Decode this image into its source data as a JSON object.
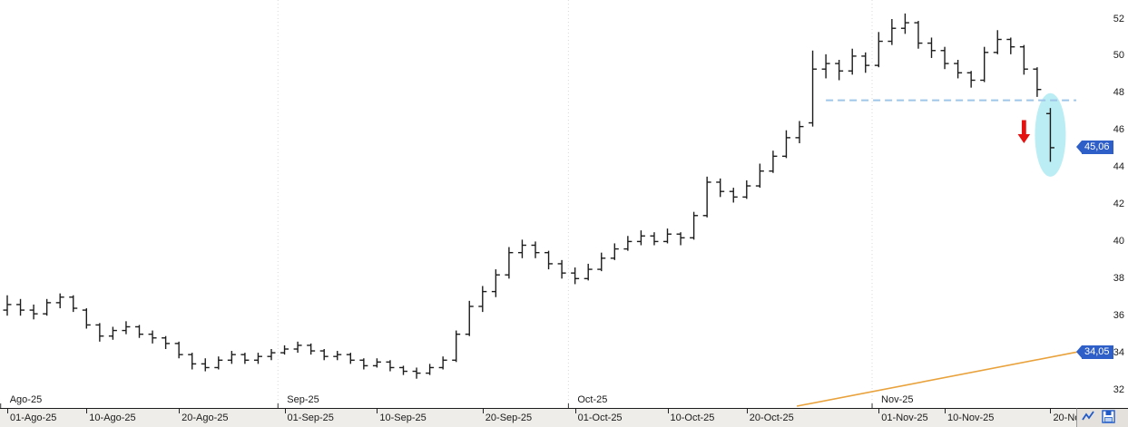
{
  "window": {
    "description": "daily OHLC price chart, Spanish locale"
  },
  "chart_data": {
    "type": "bar",
    "subtype": "ohlc",
    "title": "",
    "xlabel": "",
    "ylabel": "",
    "grid": false,
    "legend": "none",
    "y_axis": {
      "side": "right",
      "ylim": [
        31.0,
        52.5
      ],
      "ticks": [
        52,
        50,
        48,
        46,
        44,
        42,
        40,
        38,
        36,
        34,
        32
      ]
    },
    "x_axis": {
      "month_labels": [
        {
          "label": "Ago-25",
          "boundary_bar": 0
        },
        {
          "label": "Sep-25",
          "boundary_bar": 20.5
        },
        {
          "label": "Oct-25",
          "boundary_bar": 42.5
        },
        {
          "label": "Nov-25",
          "boundary_bar": 65.5
        }
      ],
      "date_ticks": [
        {
          "label": "01-Ago-25",
          "bar": 0
        },
        {
          "label": "10-Ago-25",
          "bar": 6
        },
        {
          "label": "20-Ago-25",
          "bar": 13
        },
        {
          "label": "01-Sep-25",
          "bar": 21
        },
        {
          "label": "10-Sep-25",
          "bar": 28
        },
        {
          "label": "20-Sep-25",
          "bar": 36
        },
        {
          "label": "01-Oct-25",
          "bar": 43
        },
        {
          "label": "10-Oct-25",
          "bar": 50
        },
        {
          "label": "20-Oct-25",
          "bar": 56
        },
        {
          "label": "01-Nov-25",
          "bar": 66
        },
        {
          "label": "10-Nov-25",
          "bar": 71
        },
        {
          "label": "20-No",
          "bar": 79
        }
      ]
    },
    "bars": [
      {
        "d": "01-Ago-25",
        "o": 36.3,
        "h": 37.1,
        "l": 36.0,
        "c": 36.6
      },
      {
        "d": "04-Ago-25",
        "o": 36.6,
        "h": 36.9,
        "l": 36.0,
        "c": 36.3
      },
      {
        "d": "05-Ago-25",
        "o": 36.3,
        "h": 36.6,
        "l": 35.8,
        "c": 36.1
      },
      {
        "d": "06-Ago-25",
        "o": 36.1,
        "h": 36.9,
        "l": 36.0,
        "c": 36.7
      },
      {
        "d": "07-Ago-25",
        "o": 36.7,
        "h": 37.2,
        "l": 36.4,
        "c": 37.0
      },
      {
        "d": "08-Ago-25",
        "o": 37.0,
        "h": 37.1,
        "l": 36.2,
        "c": 36.4
      },
      {
        "d": "11-Ago-25",
        "o": 36.3,
        "h": 36.4,
        "l": 35.3,
        "c": 35.5
      },
      {
        "d": "12-Ago-25",
        "o": 35.5,
        "h": 35.6,
        "l": 34.6,
        "c": 34.9
      },
      {
        "d": "13-Ago-25",
        "o": 34.9,
        "h": 35.4,
        "l": 34.7,
        "c": 35.2
      },
      {
        "d": "14-Ago-25",
        "o": 35.2,
        "h": 35.7,
        "l": 35.0,
        "c": 35.4
      },
      {
        "d": "15-Ago-25",
        "o": 35.4,
        "h": 35.5,
        "l": 34.8,
        "c": 35.0
      },
      {
        "d": "18-Ago-25",
        "o": 35.0,
        "h": 35.2,
        "l": 34.5,
        "c": 34.8
      },
      {
        "d": "19-Ago-25",
        "o": 34.8,
        "h": 34.9,
        "l": 34.2,
        "c": 34.5
      },
      {
        "d": "20-Ago-25",
        "o": 34.5,
        "h": 34.6,
        "l": 33.7,
        "c": 33.9
      },
      {
        "d": "21-Ago-25",
        "o": 33.9,
        "h": 34.0,
        "l": 33.1,
        "c": 33.4
      },
      {
        "d": "22-Ago-25",
        "o": 33.4,
        "h": 33.7,
        "l": 33.0,
        "c": 33.2
      },
      {
        "d": "25-Ago-25",
        "o": 33.2,
        "h": 33.8,
        "l": 33.1,
        "c": 33.6
      },
      {
        "d": "26-Ago-25",
        "o": 33.6,
        "h": 34.1,
        "l": 33.4,
        "c": 33.9
      },
      {
        "d": "27-Ago-25",
        "o": 33.9,
        "h": 34.0,
        "l": 33.4,
        "c": 33.6
      },
      {
        "d": "28-Ago-25",
        "o": 33.6,
        "h": 34.0,
        "l": 33.4,
        "c": 33.8
      },
      {
        "d": "29-Ago-25",
        "o": 33.8,
        "h": 34.2,
        "l": 33.6,
        "c": 34.0
      },
      {
        "d": "01-Sep-25",
        "o": 34.0,
        "h": 34.4,
        "l": 33.9,
        "c": 34.2
      },
      {
        "d": "02-Sep-25",
        "o": 34.2,
        "h": 34.6,
        "l": 34.0,
        "c": 34.4
      },
      {
        "d": "03-Sep-25",
        "o": 34.4,
        "h": 34.5,
        "l": 33.9,
        "c": 34.1
      },
      {
        "d": "04-Sep-25",
        "o": 34.1,
        "h": 34.2,
        "l": 33.6,
        "c": 33.8
      },
      {
        "d": "05-Sep-25",
        "o": 33.8,
        "h": 34.1,
        "l": 33.6,
        "c": 33.9
      },
      {
        "d": "08-Sep-25",
        "o": 33.9,
        "h": 34.0,
        "l": 33.4,
        "c": 33.6
      },
      {
        "d": "09-Sep-25",
        "o": 33.6,
        "h": 33.7,
        "l": 33.1,
        "c": 33.3
      },
      {
        "d": "10-Sep-25",
        "o": 33.3,
        "h": 33.7,
        "l": 33.2,
        "c": 33.5
      },
      {
        "d": "11-Sep-25",
        "o": 33.5,
        "h": 33.6,
        "l": 33.0,
        "c": 33.2
      },
      {
        "d": "12-Sep-25",
        "o": 33.2,
        "h": 33.3,
        "l": 32.8,
        "c": 33.0
      },
      {
        "d": "15-Sep-25",
        "o": 33.0,
        "h": 33.2,
        "l": 32.6,
        "c": 32.9
      },
      {
        "d": "16-Sep-25",
        "o": 32.9,
        "h": 33.4,
        "l": 32.8,
        "c": 33.2
      },
      {
        "d": "17-Sep-25",
        "o": 33.2,
        "h": 33.8,
        "l": 33.1,
        "c": 33.6
      },
      {
        "d": "18-Sep-25",
        "o": 33.6,
        "h": 35.2,
        "l": 33.5,
        "c": 35.0
      },
      {
        "d": "19-Sep-25",
        "o": 35.0,
        "h": 36.8,
        "l": 34.9,
        "c": 36.5
      },
      {
        "d": "22-Sep-25",
        "o": 36.5,
        "h": 37.6,
        "l": 36.2,
        "c": 37.3
      },
      {
        "d": "23-Sep-25",
        "o": 37.3,
        "h": 38.5,
        "l": 37.0,
        "c": 38.2
      },
      {
        "d": "24-Sep-25",
        "o": 38.2,
        "h": 39.7,
        "l": 38.0,
        "c": 39.4
      },
      {
        "d": "25-Sep-25",
        "o": 39.4,
        "h": 40.1,
        "l": 39.1,
        "c": 39.8
      },
      {
        "d": "26-Sep-25",
        "o": 39.8,
        "h": 40.0,
        "l": 39.1,
        "c": 39.4
      },
      {
        "d": "29-Sep-25",
        "o": 39.4,
        "h": 39.5,
        "l": 38.5,
        "c": 38.8
      },
      {
        "d": "30-Sep-25",
        "o": 38.8,
        "h": 39.0,
        "l": 38.0,
        "c": 38.3
      },
      {
        "d": "01-Oct-25",
        "o": 38.3,
        "h": 38.6,
        "l": 37.7,
        "c": 38.0
      },
      {
        "d": "02-Oct-25",
        "o": 38.0,
        "h": 38.8,
        "l": 37.9,
        "c": 38.5
      },
      {
        "d": "03-Oct-25",
        "o": 38.5,
        "h": 39.4,
        "l": 38.4,
        "c": 39.1
      },
      {
        "d": "06-Oct-25",
        "o": 39.1,
        "h": 39.9,
        "l": 39.0,
        "c": 39.6
      },
      {
        "d": "07-Oct-25",
        "o": 39.6,
        "h": 40.3,
        "l": 39.5,
        "c": 40.0
      },
      {
        "d": "08-Oct-25",
        "o": 40.0,
        "h": 40.6,
        "l": 39.8,
        "c": 40.3
      },
      {
        "d": "09-Oct-25",
        "o": 40.3,
        "h": 40.5,
        "l": 39.8,
        "c": 40.0
      },
      {
        "d": "10-Oct-25",
        "o": 40.0,
        "h": 40.7,
        "l": 39.9,
        "c": 40.4
      },
      {
        "d": "13-Oct-25",
        "o": 40.4,
        "h": 40.5,
        "l": 39.8,
        "c": 40.2
      },
      {
        "d": "14-Oct-25",
        "o": 40.2,
        "h": 41.6,
        "l": 40.1,
        "c": 41.4
      },
      {
        "d": "15-Oct-25",
        "o": 41.4,
        "h": 43.5,
        "l": 41.3,
        "c": 43.2
      },
      {
        "d": "16-Oct-25",
        "o": 43.2,
        "h": 43.4,
        "l": 42.4,
        "c": 42.7
      },
      {
        "d": "17-Oct-25",
        "o": 42.7,
        "h": 42.9,
        "l": 42.1,
        "c": 42.4
      },
      {
        "d": "20-Oct-25",
        "o": 42.4,
        "h": 43.3,
        "l": 42.3,
        "c": 43.0
      },
      {
        "d": "21-Oct-25",
        "o": 43.0,
        "h": 44.2,
        "l": 42.9,
        "c": 43.8
      },
      {
        "d": "22-Oct-25",
        "o": 43.8,
        "h": 44.9,
        "l": 43.7,
        "c": 44.6
      },
      {
        "d": "23-Oct-25",
        "o": 44.6,
        "h": 46.0,
        "l": 44.5,
        "c": 45.6
      },
      {
        "d": "24-Oct-25",
        "o": 45.6,
        "h": 46.5,
        "l": 45.3,
        "c": 46.2
      },
      {
        "d": "27-Oct-25",
        "o": 46.4,
        "h": 50.3,
        "l": 46.2,
        "c": 49.3
      },
      {
        "d": "28-Oct-25",
        "o": 49.3,
        "h": 50.1,
        "l": 48.8,
        "c": 49.6
      },
      {
        "d": "29-Oct-25",
        "o": 49.6,
        "h": 49.8,
        "l": 48.7,
        "c": 49.2
      },
      {
        "d": "30-Oct-25",
        "o": 49.2,
        "h": 50.4,
        "l": 49.0,
        "c": 50.0
      },
      {
        "d": "31-Oct-25",
        "o": 50.0,
        "h": 50.2,
        "l": 49.1,
        "c": 49.5
      },
      {
        "d": "03-Nov-25",
        "o": 49.5,
        "h": 51.3,
        "l": 49.4,
        "c": 50.8
      },
      {
        "d": "04-Nov-25",
        "o": 50.8,
        "h": 52.0,
        "l": 50.6,
        "c": 51.5
      },
      {
        "d": "05-Nov-25",
        "o": 51.5,
        "h": 52.3,
        "l": 51.2,
        "c": 51.8
      },
      {
        "d": "06-Nov-25",
        "o": 51.8,
        "h": 51.9,
        "l": 50.4,
        "c": 50.7
      },
      {
        "d": "07-Nov-25",
        "o": 50.7,
        "h": 51.0,
        "l": 49.9,
        "c": 50.3
      },
      {
        "d": "10-Nov-25",
        "o": 50.3,
        "h": 50.5,
        "l": 49.3,
        "c": 49.6
      },
      {
        "d": "11-Nov-25",
        "o": 49.6,
        "h": 49.8,
        "l": 48.8,
        "c": 49.1
      },
      {
        "d": "12-Nov-25",
        "o": 49.1,
        "h": 49.2,
        "l": 48.3,
        "c": 48.7
      },
      {
        "d": "13-Nov-25",
        "o": 48.7,
        "h": 50.5,
        "l": 48.6,
        "c": 50.2
      },
      {
        "d": "14-Nov-25",
        "o": 50.2,
        "h": 51.4,
        "l": 50.1,
        "c": 50.9
      },
      {
        "d": "17-Nov-25",
        "o": 50.9,
        "h": 51.0,
        "l": 50.1,
        "c": 50.5
      },
      {
        "d": "18-Nov-25",
        "o": 50.5,
        "h": 50.6,
        "l": 49.0,
        "c": 49.3
      },
      {
        "d": "19-Nov-25",
        "o": 49.3,
        "h": 49.4,
        "l": 47.8,
        "c": 48.2
      },
      {
        "d": "20-Nov-25",
        "o": 46.9,
        "h": 47.2,
        "l": 44.3,
        "c": 45.06
      }
    ],
    "annotations": {
      "support_dashed_line": {
        "price": 47.62,
        "from_bar": 62,
        "color": "#9fc6e8",
        "style": "dashed"
      },
      "trend_line": {
        "from_bar": 59.8,
        "from_price": 31.12,
        "to_price": 34.05,
        "color": "#e9a23b"
      },
      "sell_arrow": {
        "bar": 77,
        "top_price": 46.55,
        "tip_price": 45.3,
        "color": "#e51212"
      },
      "highlight_ellipse": {
        "bar": 79,
        "center_price": 45.75,
        "price_radius": 2.25,
        "color": "#aeeaf2"
      }
    },
    "price_tags": [
      {
        "text": "45,06",
        "price": 45.06
      },
      {
        "text": "34,05",
        "price": 34.05
      }
    ],
    "colors": {
      "bar": "#1c1c1c",
      "background": "#ffffff",
      "tag_bg": "#2e5fc8",
      "tag_text": "#ffffff",
      "axis_strip_bg": "#efede9",
      "month_gridline": "#d9d9d9"
    }
  },
  "toolbar": {
    "icons": [
      {
        "name": "indicator-chart-icon",
        "color": "#1f5ac8"
      },
      {
        "name": "save-chart-icon",
        "color": "#1f5ac8"
      }
    ]
  }
}
